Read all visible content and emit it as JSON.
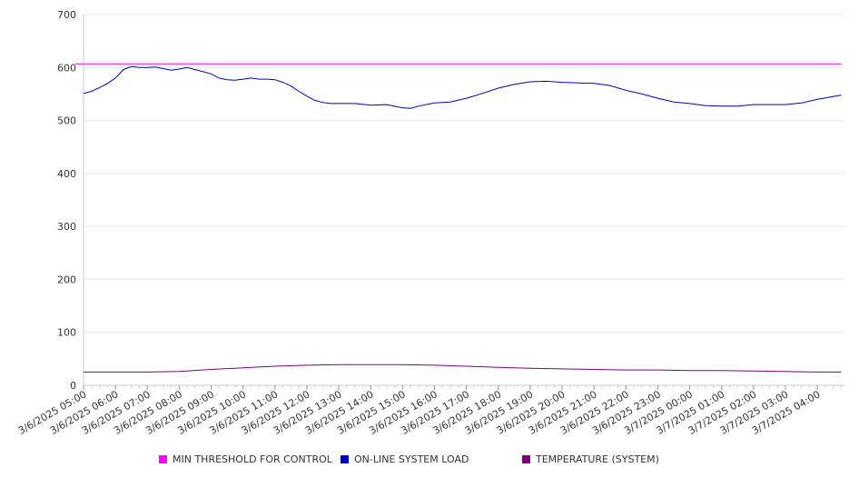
{
  "chart_data": {
    "type": "line",
    "title": "",
    "xlabel": "",
    "ylabel": "",
    "ylim": [
      0,
      700
    ],
    "y_ticks": [
      0,
      100,
      200,
      300,
      400,
      500,
      600,
      700
    ],
    "x_tick_labels": [
      "3/6/2025 05:00",
      "3/6/2025 06:00",
      "3/6/2025 07:00",
      "3/6/2025 08:00",
      "3/6/2025 09:00",
      "3/6/2025 10:00",
      "3/6/2025 11:00",
      "3/6/2025 12:00",
      "3/6/2025 13:00",
      "3/6/2025 14:00",
      "3/6/2025 15:00",
      "3/6/2025 16:00",
      "3/6/2025 17:00",
      "3/6/2025 18:00",
      "3/6/2025 19:00",
      "3/6/2025 20:00",
      "3/6/2025 21:00",
      "3/6/2025 22:00",
      "3/6/2025 23:00",
      "3/7/2025 00:00",
      "3/7/2025 01:00",
      "3/7/2025 02:00",
      "3/7/2025 03:00",
      "3/7/2025 04:00"
    ],
    "grid": true,
    "legend_position": "bottom",
    "series": [
      {
        "name": "MIN THRESHOLD FOR CONTROL",
        "color": "#ff00ff",
        "x": [
          "3/6/2025 04:45",
          "3/7/2025 04:45"
        ],
        "values": [
          607,
          607
        ]
      },
      {
        "name": "ON-LINE SYSTEM LOAD",
        "color": "#0000cc",
        "x": [
          "3/6/2025 05:00",
          "3/6/2025 05:15",
          "3/6/2025 05:30",
          "3/6/2025 05:45",
          "3/6/2025 06:00",
          "3/6/2025 06:15",
          "3/6/2025 06:30",
          "3/6/2025 06:45",
          "3/6/2025 07:00",
          "3/6/2025 07:15",
          "3/6/2025 07:30",
          "3/6/2025 07:45",
          "3/6/2025 08:00",
          "3/6/2025 08:15",
          "3/6/2025 08:30",
          "3/6/2025 08:45",
          "3/6/2025 09:00",
          "3/6/2025 09:15",
          "3/6/2025 09:30",
          "3/6/2025 09:45",
          "3/6/2025 10:00",
          "3/6/2025 10:15",
          "3/6/2025 10:30",
          "3/6/2025 10:45",
          "3/6/2025 11:00",
          "3/6/2025 11:15",
          "3/6/2025 11:30",
          "3/6/2025 11:45",
          "3/6/2025 12:00",
          "3/6/2025 12:15",
          "3/6/2025 12:30",
          "3/6/2025 12:45",
          "3/6/2025 13:00",
          "3/6/2025 13:30",
          "3/6/2025 14:00",
          "3/6/2025 14:30",
          "3/6/2025 15:00",
          "3/6/2025 15:15",
          "3/6/2025 15:30",
          "3/6/2025 16:00",
          "3/6/2025 16:30",
          "3/6/2025 17:00",
          "3/6/2025 17:30",
          "3/6/2025 18:00",
          "3/6/2025 18:30",
          "3/6/2025 19:00",
          "3/6/2025 19:30",
          "3/6/2025 20:00",
          "3/6/2025 20:30",
          "3/6/2025 21:00",
          "3/6/2025 21:30",
          "3/6/2025 22:00",
          "3/6/2025 22:30",
          "3/6/2025 23:00",
          "3/6/2025 23:30",
          "3/7/2025 00:00",
          "3/7/2025 00:30",
          "3/7/2025 01:00",
          "3/7/2025 01:30",
          "3/7/2025 02:00",
          "3/7/2025 02:30",
          "3/7/2025 03:00",
          "3/7/2025 03:30",
          "3/7/2025 04:00",
          "3/7/2025 04:30",
          "3/7/2025 04:45"
        ],
        "values": [
          551,
          555,
          562,
          570,
          580,
          596,
          602,
          600,
          600,
          601,
          598,
          595,
          597,
          600,
          596,
          592,
          588,
          580,
          577,
          576,
          578,
          580,
          578,
          578,
          577,
          572,
          565,
          555,
          546,
          538,
          534,
          532,
          532,
          532,
          529,
          530,
          524,
          523,
          527,
          533,
          535,
          542,
          551,
          561,
          568,
          573,
          574,
          572,
          571,
          570,
          566,
          557,
          550,
          542,
          535,
          532,
          528,
          527,
          527,
          530,
          530,
          530,
          533,
          540,
          545,
          548
        ]
      },
      {
        "name": "TEMPERATURE (SYSTEM)",
        "color": "#800080",
        "x": [
          "3/6/2025 05:00",
          "3/6/2025 06:00",
          "3/6/2025 07:00",
          "3/6/2025 08:00",
          "3/6/2025 09:00",
          "3/6/2025 10:00",
          "3/6/2025 11:00",
          "3/6/2025 12:00",
          "3/6/2025 13:00",
          "3/6/2025 14:00",
          "3/6/2025 15:00",
          "3/6/2025 16:00",
          "3/6/2025 17:00",
          "3/6/2025 18:00",
          "3/6/2025 19:00",
          "3/6/2025 20:00",
          "3/6/2025 21:00",
          "3/6/2025 22:00",
          "3/6/2025 23:00",
          "3/7/2025 00:00",
          "3/7/2025 01:00",
          "3/7/2025 02:00",
          "3/7/2025 03:00",
          "3/7/2025 04:00",
          "3/7/2025 04:45"
        ],
        "values": [
          25,
          25,
          25,
          26,
          30,
          33,
          36,
          38,
          39,
          39,
          39,
          38,
          36,
          34,
          32,
          31,
          30,
          29,
          29,
          28,
          28,
          27,
          26,
          25,
          25
        ]
      }
    ]
  }
}
